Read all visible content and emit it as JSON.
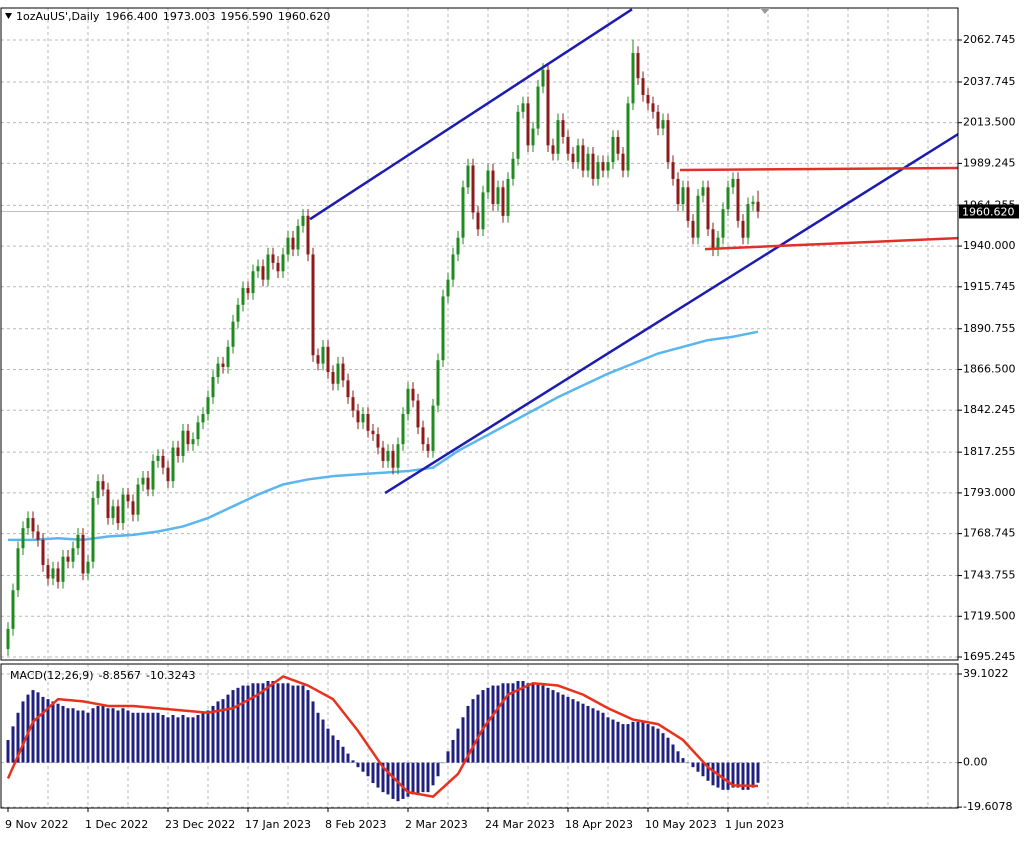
{
  "chart_data": [
    {
      "type": "candlestick",
      "title": "1ozAuUS',Daily",
      "header_values": [
        "1966.400",
        "1973.003",
        "1956.590",
        "1960.620"
      ],
      "categories": [
        "9 Nov 2022",
        null,
        null,
        null,
        null,
        null,
        null,
        null,
        null,
        null,
        null,
        null,
        null,
        null,
        null,
        null,
        "1 Dec 2022",
        null,
        null,
        null,
        null,
        null,
        null,
        null,
        null,
        null,
        null,
        null,
        null,
        null,
        null,
        null,
        "23 Dec 2022",
        null,
        null,
        null,
        null,
        null,
        null,
        null,
        null,
        null,
        null,
        null,
        null,
        null,
        null,
        null,
        "17 Jan 2023",
        null,
        null,
        null,
        null,
        null,
        null,
        null,
        null,
        null,
        null,
        null,
        null,
        null,
        null,
        null,
        "8 Feb 2023",
        null,
        null,
        null,
        null,
        null,
        null,
        null,
        null,
        null,
        null,
        null,
        null,
        null,
        null,
        null,
        "2 Mar 2023",
        null,
        null,
        null,
        null,
        null,
        null,
        null,
        null,
        null,
        null,
        null,
        null,
        null,
        null,
        null,
        "24 Mar 2023",
        null,
        null,
        null,
        null,
        null,
        null,
        null,
        null,
        null,
        null,
        null,
        null,
        null,
        null,
        null,
        "18 Apr 2023",
        null,
        null,
        null,
        null,
        null,
        null,
        null,
        null,
        null,
        null,
        null,
        null,
        null,
        null,
        null,
        "10 May 2023",
        null,
        null,
        null,
        null,
        null,
        null,
        null,
        null,
        null,
        null,
        null,
        null,
        null,
        null,
        null,
        "1 Jun 2023",
        null,
        null,
        null,
        null,
        null,
        null
      ],
      "open": [
        1700,
        1712,
        1735,
        1760,
        1772,
        1778,
        1770,
        1765,
        1750,
        1742,
        1748,
        1740,
        1755,
        1752,
        1760,
        1768,
        1745,
        1752,
        1790,
        1800,
        1795,
        1778,
        1785,
        1775,
        1792,
        1788,
        1780,
        1798,
        1802,
        1795,
        1812,
        1815,
        1808,
        1800,
        1820,
        1815,
        1830,
        1822,
        1825,
        1835,
        1840,
        1850,
        1862,
        1870,
        1868,
        1880,
        1895,
        1905,
        1915,
        1912,
        1925,
        1928,
        1920,
        1935,
        1930,
        1925,
        1935,
        1945,
        1938,
        1952,
        1958,
        1935,
        1875,
        1870,
        1880,
        1865,
        1858,
        1870,
        1860,
        1850,
        1842,
        1835,
        1840,
        1830,
        1828,
        1820,
        1812,
        1818,
        1808,
        1822,
        1840,
        1855,
        1848,
        1832,
        1822,
        1818,
        1845,
        1872,
        1910,
        1920,
        1935,
        1945,
        1975,
        1988,
        1960,
        1950,
        1972,
        1985,
        1965,
        1975,
        1958,
        1980,
        1992,
        2020,
        2025,
        2000,
        2010,
        2035,
        2045,
        2000,
        1995,
        2015,
        2005,
        1995,
        1990,
        2000,
        1985,
        1995,
        1980,
        1990,
        1985,
        1990,
        2005,
        1995,
        1985,
        2025,
        2055,
        2040,
        2030,
        2025,
        2020,
        2010,
        2015,
        1990,
        1980,
        1965,
        1975,
        1955,
        1945,
        1970,
        1975,
        1950,
        1938,
        1945,
        1962,
        1975,
        1980,
        1955,
        1945,
        1965,
        1966.4
      ],
      "high": [
        1716,
        1739,
        1764,
        1776,
        1782,
        1782,
        1774,
        1769,
        1754,
        1752,
        1752,
        1759,
        1759,
        1764,
        1772,
        1772,
        1756,
        1794,
        1804,
        1804,
        1799,
        1789,
        1789,
        1796,
        1796,
        1792,
        1802,
        1806,
        1806,
        1816,
        1819,
        1819,
        1812,
        1824,
        1824,
        1834,
        1834,
        1829,
        1839,
        1844,
        1854,
        1866,
        1874,
        1874,
        1884,
        1899,
        1909,
        1919,
        1919,
        1929,
        1932,
        1932,
        1939,
        1939,
        1934,
        1939,
        1949,
        1949,
        1956,
        1962,
        1962,
        1939,
        1879,
        1884,
        1884,
        1869,
        1874,
        1874,
        1864,
        1854,
        1846,
        1844,
        1844,
        1834,
        1832,
        1824,
        1822,
        1822,
        1826,
        1844,
        1859,
        1859,
        1852,
        1836,
        1826,
        1849,
        1876,
        1914,
        1924,
        1939,
        1949,
        1979,
        1992,
        1992,
        1964,
        1976,
        1989,
        1989,
        1979,
        1979,
        1984,
        1996,
        2024,
        2029,
        2029,
        2014,
        2039,
        2049,
        2049,
        2004,
        2019,
        2019,
        2009,
        1999,
        2004,
        2004,
        1999,
        1999,
        1994,
        1994,
        1994,
        2009,
        2009,
        1999,
        2029,
        2063,
        2059,
        2044,
        2034,
        2029,
        2024,
        2019,
        2019,
        1994,
        1984,
        1979,
        1979,
        1959,
        1974,
        1979,
        1979,
        1954,
        1949,
        1966,
        1979,
        1984,
        1984,
        1959,
        1969,
        1970,
        1973.003
      ],
      "low": [
        1696,
        1708,
        1731,
        1756,
        1768,
        1766,
        1761,
        1746,
        1738,
        1738,
        1736,
        1736,
        1748,
        1748,
        1756,
        1741,
        1741,
        1748,
        1786,
        1791,
        1774,
        1774,
        1771,
        1771,
        1784,
        1776,
        1776,
        1794,
        1791,
        1791,
        1808,
        1804,
        1796,
        1796,
        1811,
        1811,
        1818,
        1818,
        1821,
        1831,
        1836,
        1846,
        1858,
        1864,
        1864,
        1876,
        1891,
        1901,
        1908,
        1908,
        1921,
        1916,
        1916,
        1926,
        1921,
        1921,
        1931,
        1934,
        1934,
        1948,
        1931,
        1871,
        1866,
        1866,
        1861,
        1854,
        1854,
        1856,
        1846,
        1838,
        1831,
        1831,
        1826,
        1824,
        1816,
        1808,
        1808,
        1804,
        1804,
        1818,
        1836,
        1844,
        1828,
        1818,
        1814,
        1814,
        1841,
        1868,
        1906,
        1916,
        1931,
        1941,
        1971,
        1956,
        1946,
        1946,
        1968,
        1961,
        1961,
        1954,
        1954,
        1976,
        1988,
        2016,
        1996,
        1996,
        2006,
        2031,
        1996,
        1991,
        1991,
        2001,
        1991,
        1986,
        1986,
        1981,
        1981,
        1976,
        1976,
        1981,
        1981,
        1986,
        1991,
        1981,
        1981,
        2021,
        2036,
        2026,
        2021,
        2016,
        2006,
        2006,
        1986,
        1976,
        1961,
        1961,
        1951,
        1941,
        1941,
        1966,
        1946,
        1934,
        1934,
        1941,
        1958,
        1971,
        1951,
        1941,
        1941,
        1961,
        1956.59
      ],
      "close": [
        1712,
        1735,
        1760,
        1772,
        1778,
        1770,
        1765,
        1750,
        1742,
        1748,
        1740,
        1755,
        1752,
        1760,
        1768,
        1745,
        1752,
        1790,
        1800,
        1795,
        1778,
        1785,
        1775,
        1792,
        1788,
        1780,
        1798,
        1802,
        1795,
        1812,
        1815,
        1808,
        1800,
        1820,
        1815,
        1830,
        1822,
        1825,
        1835,
        1840,
        1850,
        1862,
        1870,
        1868,
        1880,
        1895,
        1905,
        1915,
        1912,
        1925,
        1928,
        1920,
        1935,
        1930,
        1925,
        1935,
        1945,
        1938,
        1952,
        1958,
        1935,
        1875,
        1870,
        1880,
        1865,
        1858,
        1870,
        1860,
        1850,
        1842,
        1835,
        1840,
        1830,
        1828,
        1820,
        1812,
        1818,
        1808,
        1822,
        1840,
        1855,
        1848,
        1832,
        1822,
        1818,
        1845,
        1872,
        1910,
        1920,
        1935,
        1945,
        1975,
        1988,
        1960,
        1950,
        1972,
        1985,
        1965,
        1975,
        1958,
        1980,
        1992,
        2020,
        2025,
        2000,
        2010,
        2035,
        2045,
        2000,
        1995,
        2015,
        2005,
        1995,
        1990,
        2000,
        1985,
        1995,
        1980,
        1990,
        1985,
        1990,
        2005,
        1995,
        1985,
        2025,
        2055,
        2040,
        2030,
        2025,
        2020,
        2010,
        2015,
        1990,
        1980,
        1965,
        1975,
        1955,
        1945,
        1970,
        1975,
        1950,
        1938,
        1945,
        1962,
        1975,
        1980,
        1955,
        1945,
        1965,
        1966.4,
        1960.62
      ],
      "bull_color": "#1f8a1f",
      "bear_color": "#8e1b1b",
      "ylim": [
        1693.46,
        2081.8
      ],
      "yticks": [
        2062.745,
        2037.745,
        {
          "value": 2013.5,
          "label": "2013.500"
        },
        1989.245,
        1964.255,
        {
          "value": 1940,
          "label": "1940.000"
        },
        1915.745,
        1890.755,
        {
          "value": 1866.5,
          "label": "1866.500"
        },
        1842.245,
        1817.255,
        {
          "value": 1793,
          "label": "1793.000"
        },
        1768.745,
        1743.755,
        {
          "value": 1719.5,
          "label": "1719.500"
        },
        1695.245
      ],
      "grid": true,
      "ma": {
        "color": "#5ab6ee",
        "x": [
          0,
          5,
          10,
          15,
          20,
          25,
          30,
          35,
          40,
          45,
          50,
          55,
          60,
          65,
          70,
          75,
          80,
          85,
          90,
          95,
          100,
          105,
          110,
          115,
          120,
          125,
          130,
          135,
          140,
          145,
          150
        ],
        "values": [
          1765,
          1765,
          1766,
          1765,
          1767,
          1768,
          1770,
          1773,
          1778,
          1785,
          1792,
          1798,
          1801,
          1803,
          1804,
          1805,
          1806,
          1808,
          1818,
          1826,
          1834,
          1842,
          1850,
          1857,
          1864,
          1870,
          1876,
          1880,
          1884,
          1886,
          1889
        ]
      },
      "trendlines": [
        {
          "color": "#1c1cb0",
          "x": [
            60.4,
            124.8
          ],
          "values": [
            1956,
            2081
          ]
        },
        {
          "color": "#1c1cb0",
          "x": [
            75.4,
            190.4
          ],
          "values": [
            1792.9,
            2007.4
          ]
        },
        {
          "color": "#e0302a",
          "x": [
            134.4,
            190
          ],
          "values": [
            1985.3,
            1986.5
          ]
        },
        {
          "color": "#e0302a",
          "x": [
            139.4,
            190
          ],
          "values": [
            1938.2,
            1944.7
          ]
        }
      ],
      "last_price": {
        "value": 1960.62,
        "label": "1960.620"
      }
    },
    {
      "type": "macd",
      "title": "MACD(12,26,9)",
      "header_values": [
        "-8.8567",
        "-10.3243"
      ],
      "values": [
        10,
        16,
        22,
        27,
        30,
        32,
        31,
        29,
        28,
        27,
        26,
        25,
        24,
        24,
        23,
        23,
        22,
        24,
        25,
        25,
        24,
        24,
        23,
        24,
        23,
        22,
        22,
        22,
        22,
        22,
        22,
        21,
        20,
        21,
        20,
        21,
        20,
        20,
        21,
        22,
        23,
        25,
        27,
        28,
        30,
        32,
        33,
        34,
        34,
        35,
        35,
        35,
        36,
        36,
        35,
        35,
        35,
        34,
        34,
        34,
        32,
        27,
        22,
        19,
        15,
        12,
        10,
        7,
        4,
        1,
        -2,
        -4,
        -6,
        -9,
        -11,
        -13,
        -14,
        -16,
        -17,
        -16,
        -15,
        -14,
        -14,
        -13,
        -13,
        -10,
        -6,
        0,
        5,
        10,
        15,
        20,
        25,
        28,
        30,
        32,
        33,
        34,
        34,
        35,
        35,
        35,
        36,
        36,
        35,
        35,
        35,
        34,
        33,
        32,
        31,
        30,
        29,
        28,
        27,
        26,
        25,
        24,
        23,
        22,
        20,
        19,
        18,
        17,
        17,
        18,
        18,
        18,
        17,
        16,
        15,
        13,
        11,
        8,
        5,
        2,
        0,
        -2,
        -4,
        -6,
        -8,
        -10,
        -11,
        -12,
        -12,
        -11,
        -11,
        -12,
        -12,
        -11,
        -8.8567
      ],
      "color": "#1f1f80",
      "signal": {
        "color": "#e8321e",
        "x": [
          0,
          5,
          10,
          15,
          20,
          25,
          30,
          35,
          40,
          45,
          50,
          55,
          60,
          65,
          70,
          75,
          80,
          85,
          90,
          95,
          100,
          105,
          110,
          115,
          120,
          125,
          130,
          135,
          140,
          145,
          150
        ],
        "values": [
          -7,
          18,
          28,
          27,
          25,
          25,
          24,
          23,
          22,
          24,
          30,
          38,
          34,
          28,
          14,
          -2,
          -13,
          -15,
          -5,
          15,
          30,
          35,
          34,
          30,
          24,
          19,
          17,
          10,
          -2,
          -10,
          -10.3243
        ]
      },
      "ylim": [
        -20,
        43.5
      ],
      "yticks": [
        39.1022,
        {
          "value": 0,
          "label": "0.00"
        },
        -19.6078
      ]
    }
  ]
}
